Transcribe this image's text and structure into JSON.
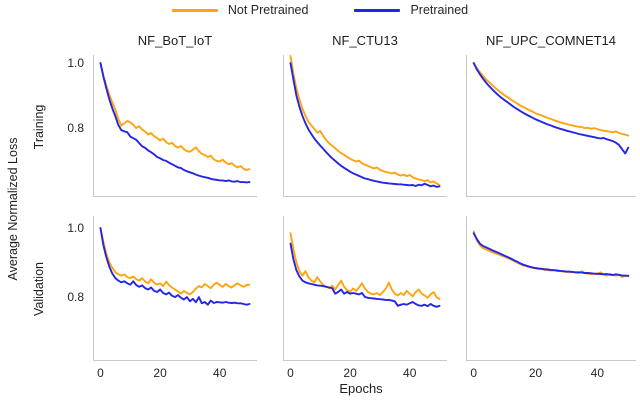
{
  "legend": {
    "items": [
      {
        "label": "Not Pretrained",
        "color": "#ffa40e"
      },
      {
        "label": "Pretrained",
        "color": "#2525e6"
      }
    ]
  },
  "figure": {
    "ylabel": "Average Normalized Loss",
    "xlabel": "Epochs",
    "row_labels": [
      "Training",
      "Validation"
    ],
    "col_titles": [
      "NF_BoT_IoT",
      "NF_CTU13",
      "NF_UPC_COMNET14"
    ]
  },
  "chart_data": {
    "type": "line",
    "grid": [
      2,
      3
    ],
    "title": "",
    "xlabel": "Epochs",
    "ylabel": "Average Normalized Loss",
    "legend_position": "top-center",
    "grid_lines": false,
    "xlim": [
      -2.5,
      52.5
    ],
    "xticks": [
      {
        "label": "0",
        "value": 0
      },
      {
        "label": "20",
        "value": 20
      },
      {
        "label": "40",
        "value": 40
      }
    ],
    "yticks": [
      {
        "label": "1.0",
        "value": 1.0
      },
      {
        "label": "0.8",
        "value": 0.8
      }
    ],
    "epochs": [
      0,
      1,
      2,
      3,
      4,
      5,
      6,
      7,
      8,
      9,
      10,
      11,
      12,
      13,
      14,
      15,
      16,
      17,
      18,
      19,
      20,
      21,
      22,
      23,
      24,
      25,
      26,
      27,
      28,
      29,
      30,
      31,
      32,
      33,
      34,
      35,
      36,
      37,
      38,
      39,
      40,
      41,
      42,
      43,
      44,
      45,
      46,
      47,
      48,
      49,
      50
    ],
    "subplots": [
      {
        "title": "NF_BoT_IoT",
        "row": "Training",
        "ylim": [
          0.588,
          1.025
        ],
        "series": [
          {
            "name": "Not Pretrained",
            "color": "#ffa40e",
            "values": [
              1.0,
              0.962,
              0.93,
              0.902,
              0.878,
              0.856,
              0.828,
              0.808,
              0.815,
              0.822,
              0.818,
              0.81,
              0.8,
              0.806,
              0.795,
              0.789,
              0.78,
              0.785,
              0.775,
              0.77,
              0.762,
              0.768,
              0.757,
              0.751,
              0.755,
              0.745,
              0.74,
              0.745,
              0.735,
              0.729,
              0.727,
              0.734,
              0.741,
              0.729,
              0.721,
              0.717,
              0.711,
              0.715,
              0.704,
              0.699,
              0.697,
              0.703,
              0.694,
              0.689,
              0.692,
              0.684,
              0.679,
              0.683,
              0.675,
              0.671,
              0.674
            ]
          },
          {
            "name": "Pretrained",
            "color": "#2525e6",
            "values": [
              1.0,
              0.958,
              0.922,
              0.888,
              0.86,
              0.836,
              0.81,
              0.794,
              0.79,
              0.787,
              0.774,
              0.769,
              0.764,
              0.754,
              0.744,
              0.739,
              0.731,
              0.726,
              0.719,
              0.711,
              0.707,
              0.702,
              0.699,
              0.694,
              0.689,
              0.684,
              0.679,
              0.677,
              0.671,
              0.667,
              0.664,
              0.661,
              0.657,
              0.654,
              0.651,
              0.649,
              0.647,
              0.644,
              0.642,
              0.641,
              0.639,
              0.639,
              0.637,
              0.639,
              0.636,
              0.635,
              0.637,
              0.634,
              0.634,
              0.633,
              0.634
            ]
          }
        ]
      },
      {
        "title": "NF_CTU13",
        "row": "Training",
        "ylim": [
          0.588,
          1.025
        ],
        "series": [
          {
            "name": "Not Pretrained",
            "color": "#ffa40e",
            "values": [
              1.022,
              0.968,
              0.922,
              0.888,
              0.86,
              0.838,
              0.82,
              0.808,
              0.798,
              0.786,
              0.791,
              0.776,
              0.763,
              0.753,
              0.746,
              0.738,
              0.73,
              0.723,
              0.718,
              0.711,
              0.706,
              0.701,
              0.697,
              0.7,
              0.692,
              0.687,
              0.684,
              0.679,
              0.676,
              0.679,
              0.672,
              0.668,
              0.665,
              0.663,
              0.66,
              0.663,
              0.657,
              0.654,
              0.657,
              0.652,
              0.656,
              0.649,
              0.645,
              0.642,
              0.64,
              0.637,
              0.64,
              0.633,
              0.636,
              0.63,
              0.625
            ]
          },
          {
            "name": "Pretrained",
            "color": "#2525e6",
            "values": [
              1.0,
              0.95,
              0.9,
              0.866,
              0.838,
              0.815,
              0.797,
              0.782,
              0.768,
              0.757,
              0.746,
              0.736,
              0.726,
              0.716,
              0.707,
              0.699,
              0.691,
              0.684,
              0.678,
              0.672,
              0.666,
              0.661,
              0.657,
              0.653,
              0.649,
              0.645,
              0.643,
              0.64,
              0.638,
              0.636,
              0.634,
              0.632,
              0.631,
              0.63,
              0.629,
              0.628,
              0.627,
              0.627,
              0.626,
              0.625,
              0.624,
              0.625,
              0.622,
              0.626,
              0.624,
              0.629,
              0.625,
              0.621,
              0.623,
              0.619,
              0.621
            ]
          }
        ]
      },
      {
        "title": "NF_UPC_COMNET14",
        "row": "Training",
        "ylim": [
          0.588,
          1.025
        ],
        "series": [
          {
            "name": "Not Pretrained",
            "color": "#ffa40e",
            "values": [
              1.0,
              0.985,
              0.972,
              0.961,
              0.95,
              0.941,
              0.932,
              0.923,
              0.915,
              0.908,
              0.901,
              0.895,
              0.888,
              0.882,
              0.876,
              0.87,
              0.865,
              0.86,
              0.855,
              0.851,
              0.846,
              0.842,
              0.839,
              0.835,
              0.831,
              0.828,
              0.824,
              0.821,
              0.818,
              0.815,
              0.813,
              0.81,
              0.808,
              0.806,
              0.804,
              0.803,
              0.8,
              0.801,
              0.798,
              0.8,
              0.797,
              0.794,
              0.792,
              0.791,
              0.789,
              0.787,
              0.79,
              0.785,
              0.782,
              0.78,
              0.777
            ]
          },
          {
            "name": "Pretrained",
            "color": "#2525e6",
            "values": [
              1.0,
              0.981,
              0.966,
              0.952,
              0.94,
              0.929,
              0.919,
              0.91,
              0.901,
              0.893,
              0.886,
              0.879,
              0.872,
              0.865,
              0.859,
              0.853,
              0.847,
              0.842,
              0.837,
              0.832,
              0.827,
              0.823,
              0.819,
              0.815,
              0.811,
              0.808,
              0.804,
              0.801,
              0.798,
              0.795,
              0.792,
              0.79,
              0.787,
              0.785,
              0.782,
              0.78,
              0.778,
              0.776,
              0.774,
              0.772,
              0.77,
              0.768,
              0.77,
              0.766,
              0.763,
              0.76,
              0.755,
              0.748,
              0.735,
              0.722,
              0.74
            ]
          }
        ]
      },
      {
        "title": "NF_BoT_IoT",
        "row": "Validation",
        "ylim": [
          0.615,
          1.035
        ],
        "series": [
          {
            "name": "Not Pretrained",
            "color": "#ffa40e",
            "values": [
              1.0,
              0.96,
              0.925,
              0.9,
              0.885,
              0.872,
              0.866,
              0.862,
              0.866,
              0.858,
              0.855,
              0.86,
              0.852,
              0.848,
              0.855,
              0.845,
              0.84,
              0.852,
              0.842,
              0.836,
              0.84,
              0.832,
              0.845,
              0.835,
              0.828,
              0.822,
              0.816,
              0.81,
              0.818,
              0.812,
              0.808,
              0.815,
              0.825,
              0.832,
              0.828,
              0.838,
              0.832,
              0.826,
              0.836,
              0.842,
              0.835,
              0.83,
              0.838,
              0.832,
              0.828,
              0.835,
              0.84,
              0.834,
              0.83,
              0.835,
              0.836
            ]
          },
          {
            "name": "Pretrained",
            "color": "#2525e6",
            "values": [
              1.0,
              0.95,
              0.915,
              0.888,
              0.868,
              0.855,
              0.848,
              0.843,
              0.846,
              0.84,
              0.836,
              0.846,
              0.835,
              0.83,
              0.834,
              0.826,
              0.822,
              0.828,
              0.818,
              0.815,
              0.822,
              0.812,
              0.808,
              0.813,
              0.804,
              0.8,
              0.806,
              0.798,
              0.793,
              0.8,
              0.788,
              0.795,
              0.785,
              0.8,
              0.782,
              0.786,
              0.778,
              0.79,
              0.783,
              0.786,
              0.785,
              0.784,
              0.786,
              0.784,
              0.783,
              0.784,
              0.782,
              0.782,
              0.78,
              0.778,
              0.78
            ]
          }
        ]
      },
      {
        "title": "NF_CTU13",
        "row": "Validation",
        "ylim": [
          0.615,
          1.035
        ],
        "series": [
          {
            "name": "Not Pretrained",
            "color": "#ffa40e",
            "values": [
              0.985,
              0.94,
              0.9,
              0.875,
              0.862,
              0.875,
              0.858,
              0.848,
              0.843,
              0.858,
              0.845,
              0.835,
              0.83,
              0.826,
              0.833,
              0.822,
              0.835,
              0.848,
              0.83,
              0.82,
              0.815,
              0.825,
              0.818,
              0.828,
              0.84,
              0.824,
              0.815,
              0.81,
              0.808,
              0.812,
              0.806,
              0.815,
              0.825,
              0.842,
              0.822,
              0.81,
              0.805,
              0.812,
              0.806,
              0.818,
              0.81,
              0.802,
              0.815,
              0.822,
              0.81,
              0.805,
              0.798,
              0.808,
              0.815,
              0.8,
              0.795
            ]
          },
          {
            "name": "Pretrained",
            "color": "#2525e6",
            "values": [
              0.955,
              0.91,
              0.878,
              0.86,
              0.848,
              0.843,
              0.84,
              0.838,
              0.836,
              0.834,
              0.833,
              0.832,
              0.83,
              0.828,
              0.826,
              0.81,
              0.815,
              0.822,
              0.81,
              0.815,
              0.81,
              0.812,
              0.81,
              0.808,
              0.812,
              0.8,
              0.798,
              0.797,
              0.796,
              0.795,
              0.794,
              0.793,
              0.792,
              0.792,
              0.79,
              0.788,
              0.775,
              0.778,
              0.78,
              0.778,
              0.782,
              0.786,
              0.78,
              0.776,
              0.775,
              0.778,
              0.774,
              0.78,
              0.775,
              0.772,
              0.775
            ]
          }
        ]
      },
      {
        "title": "NF_UPC_COMNET14",
        "row": "Validation",
        "ylim": [
          0.615,
          1.035
        ],
        "series": [
          {
            "name": "Not Pretrained",
            "color": "#ffa40e",
            "values": [
              0.99,
              0.965,
              0.95,
              0.942,
              0.938,
              0.934,
              0.93,
              0.927,
              0.924,
              0.92,
              0.917,
              0.913,
              0.909,
              0.905,
              0.9,
              0.896,
              0.892,
              0.89,
              0.887,
              0.885,
              0.883,
              0.882,
              0.881,
              0.879,
              0.878,
              0.877,
              0.878,
              0.876,
              0.875,
              0.874,
              0.873,
              0.872,
              0.873,
              0.871,
              0.87,
              0.875,
              0.869,
              0.868,
              0.867,
              0.868,
              0.866,
              0.872,
              0.866,
              0.862,
              0.868,
              0.864,
              0.862,
              0.866,
              0.858,
              0.862,
              0.86
            ]
          },
          {
            "name": "Pretrained",
            "color": "#2525e6",
            "values": [
              0.985,
              0.968,
              0.955,
              0.948,
              0.944,
              0.94,
              0.936,
              0.932,
              0.928,
              0.924,
              0.92,
              0.916,
              0.912,
              0.907,
              0.903,
              0.898,
              0.894,
              0.891,
              0.888,
              0.886,
              0.884,
              0.883,
              0.882,
              0.881,
              0.88,
              0.879,
              0.878,
              0.877,
              0.876,
              0.875,
              0.874,
              0.874,
              0.873,
              0.872,
              0.872,
              0.871,
              0.87,
              0.87,
              0.869,
              0.868,
              0.868,
              0.867,
              0.866,
              0.867,
              0.865,
              0.864,
              0.866,
              0.864,
              0.863,
              0.862,
              0.862
            ]
          }
        ]
      }
    ]
  }
}
